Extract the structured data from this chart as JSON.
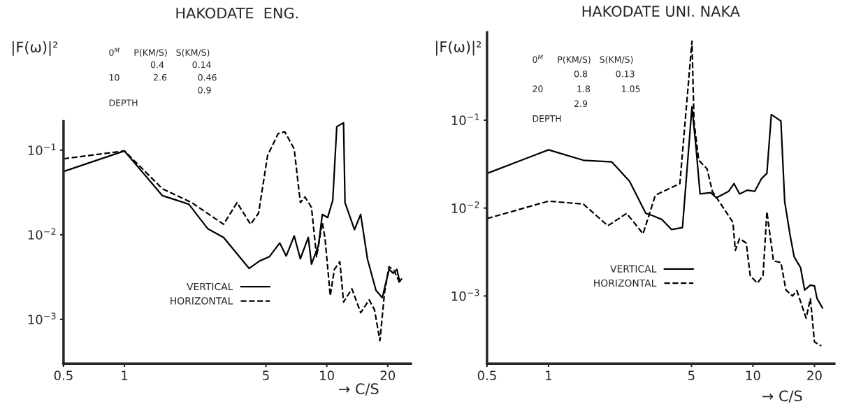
{
  "chart_data": [
    {
      "type": "line",
      "title": "HAKODATE  ENG.",
      "xlabel": "→ C/S",
      "ylabel": "|F(ω)|²",
      "log": "xy",
      "grid": false,
      "legend": "bottom",
      "marker": "none",
      "xlim": [
        0.5,
        26
      ],
      "ylim": [
        0.0003,
        0.22
      ],
      "xticks": [
        0.5,
        1,
        5,
        10,
        20
      ],
      "yticks": [
        {
          "value": 0.1,
          "label": "10$^{−1}$"
        },
        {
          "value": 0.01,
          "label": "10$^{−2}$"
        },
        {
          "value": 0.001,
          "label": "10$^{−3}$"
        }
      ],
      "annotations": [
        "0$^{M}$     P(KM/S)   S(KM/S)",
        "               0.4          0.14",
        "10            2.6           0.46",
        "                                0.9",
        "DEPTH"
      ],
      "series": [
        {
          "name": "VERTICAL",
          "color": "#000000",
          "line_style": "solid",
          "x": [
            0.5,
            1,
            1.54,
            2.08,
            2.58,
            3.09,
            4.13,
            4.65,
            5.2,
            5.85,
            6.3,
            6.9,
            7.4,
            8.1,
            8.4,
            9.1,
            9.5,
            10.1,
            10.7,
            11.2,
            12.1,
            12.3,
            13.7,
            14.7,
            15.9,
            17.5,
            18.8,
            20.3,
            21.3,
            22.2,
            22.9,
            23.4
          ],
          "values": [
            0.056,
            0.098,
            0.029,
            0.023,
            0.0118,
            0.0093,
            0.004,
            0.0049,
            0.0055,
            0.008,
            0.0056,
            0.0097,
            0.0052,
            0.0093,
            0.0045,
            0.0075,
            0.0174,
            0.016,
            0.0256,
            0.19,
            0.21,
            0.024,
            0.0115,
            0.0174,
            0.0051,
            0.0022,
            0.0018,
            0.0039,
            0.0035,
            0.0039,
            0.0028,
            0.003
          ]
        },
        {
          "name": "HORIZONTAL",
          "color": "#000000",
          "line_style": "dashed",
          "x": [
            0.5,
            1,
            1.54,
            2.15,
            3.09,
            3.6,
            4.2,
            4.6,
            5.1,
            5.75,
            6.2,
            6.9,
            7.4,
            7.8,
            8.4,
            8.9,
            9.5,
            9.8,
            10.4,
            10.9,
            11.6,
            12.1,
            13.3,
            14.7,
            16.2,
            17.2,
            18.3,
            19.3,
            20.3,
            21.6,
            22.9
          ],
          "values": [
            0.079,
            0.098,
            0.035,
            0.024,
            0.0133,
            0.024,
            0.0133,
            0.018,
            0.087,
            0.157,
            0.165,
            0.103,
            0.024,
            0.028,
            0.021,
            0.0055,
            0.014,
            0.009,
            0.0019,
            0.0039,
            0.0048,
            0.0016,
            0.0023,
            0.0012,
            0.0017,
            0.0013,
            0.00056,
            0.0021,
            0.0042,
            0.0037,
            0.0027
          ]
        }
      ]
    },
    {
      "type": "line",
      "title": "HAKODATE UNI. NAKA",
      "xlabel": "→ C/S",
      "ylabel": "|F(ω)|²",
      "log": "xy",
      "grid": false,
      "legend": "bottom",
      "marker": "none",
      "xlim": [
        0.5,
        25
      ],
      "ylim": [
        0.00017,
        1.0
      ],
      "xticks": [
        0.5,
        1,
        5,
        10,
        20
      ],
      "yticks": [
        {
          "value": 0.1,
          "label": "10$^{−1}$"
        },
        {
          "value": 0.01,
          "label": "10$^{−2}$"
        },
        {
          "value": 0.001,
          "label": "10$^{−3}$"
        }
      ],
      "annotations": [
        "0$^{M}$     P(KM/S)   S(KM/S)",
        "               0.8          0.13",
        "20            1.8           1.05",
        "               2.9",
        "DEPTH"
      ],
      "series": [
        {
          "name": "VERTICAL",
          "color": "#000000",
          "line_style": "solid",
          "x": [
            0.5,
            1,
            1.48,
            2.04,
            2.49,
            2.99,
            3.23,
            3.59,
            4.0,
            4.52,
            5.03,
            5.27,
            5.51,
            6.22,
            6.62,
            7.6,
            8.08,
            8.6,
            9.4,
            10.2,
            11.0,
            11.7,
            12.3,
            13.7,
            14.3,
            15.2,
            15.9,
            17.1,
            17.9,
            19.1,
            20,
            20.6,
            21.9
          ],
          "values": [
            0.0248,
            0.046,
            0.035,
            0.0335,
            0.0202,
            0.0087,
            0.0082,
            0.0074,
            0.0057,
            0.006,
            0.142,
            0.048,
            0.0145,
            0.015,
            0.0131,
            0.0155,
            0.019,
            0.0145,
            0.016,
            0.0155,
            0.0216,
            0.0248,
            0.116,
            0.098,
            0.0118,
            0.0049,
            0.0028,
            0.0021,
            0.00117,
            0.00133,
            0.0013,
            0.00093,
            0.00073
          ]
        },
        {
          "name": "HORIZONTAL",
          "color": "#000000",
          "line_style": "dashed",
          "x": [
            0.5,
            1,
            1.48,
            1.95,
            2.41,
            2.9,
            3.33,
            4.39,
            5.03,
            5.15,
            5.43,
            5.96,
            6.33,
            7.98,
            8.2,
            8.6,
            9.27,
            9.7,
            10.5,
            11.2,
            11.7,
            12.6,
            13.7,
            14.5,
            15.6,
            16.4,
            18.2,
            19.1,
            20,
            21.6
          ],
          "values": [
            0.0076,
            0.012,
            0.0111,
            0.0063,
            0.0087,
            0.0051,
            0.014,
            0.019,
            0.79,
            0.095,
            0.035,
            0.028,
            0.0155,
            0.0069,
            0.0033,
            0.0045,
            0.004,
            0.0017,
            0.0014,
            0.0017,
            0.0091,
            0.0025,
            0.0024,
            0.00117,
            0.001,
            0.00115,
            0.00056,
            0.00093,
            0.0003,
            0.00027
          ]
        }
      ]
    }
  ]
}
